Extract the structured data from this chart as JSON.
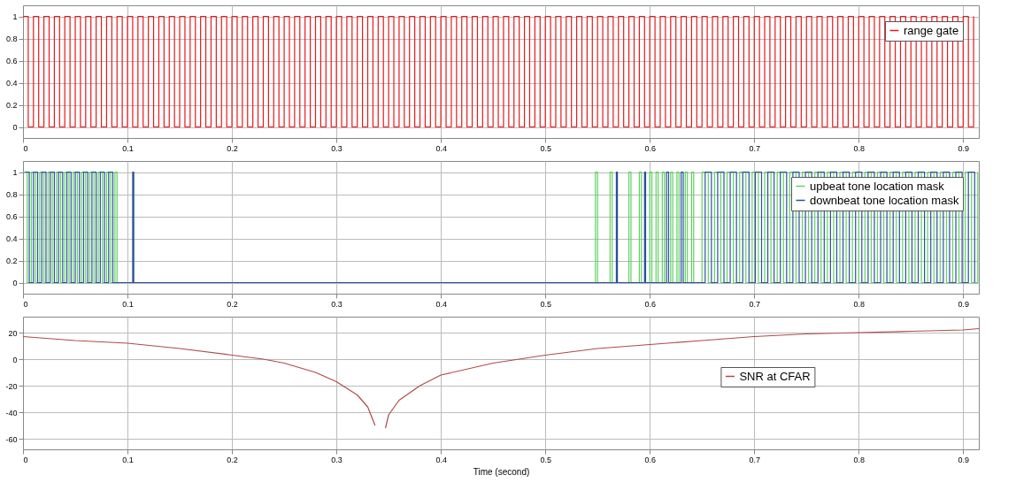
{
  "chart_data": [
    {
      "type": "step",
      "xlim": [
        0,
        0.915
      ],
      "xticks": [
        0,
        0.1,
        0.2,
        0.3,
        0.4,
        0.5,
        0.6,
        0.7,
        0.8,
        0.9
      ],
      "ylim": [
        -0.1,
        1.1
      ],
      "yticks": [
        0,
        0.2,
        0.4,
        0.6,
        0.8,
        1
      ],
      "grid": true,
      "legend": "top right",
      "series": [
        {
          "name": "range gate",
          "color": "#e8191b",
          "x": [
            0,
            0.005,
            0.01,
            0.015,
            0.02,
            0.025,
            0.03,
            0.035,
            0.04,
            0.045,
            0.05,
            0.055,
            0.06,
            0.065,
            0.07,
            0.075,
            0.08,
            0.085,
            0.09,
            0.095,
            0.1,
            0.105,
            0.11,
            0.115,
            0.12,
            0.125,
            0.13,
            0.135,
            0.14,
            0.145,
            0.15,
            0.155,
            0.16,
            0.165,
            0.17,
            0.175,
            0.18,
            0.185,
            0.19,
            0.195,
            0.2,
            0.205,
            0.21,
            0.215,
            0.22,
            0.225,
            0.23,
            0.235,
            0.24,
            0.245,
            0.25,
            0.255,
            0.26,
            0.265,
            0.27,
            0.275,
            0.28,
            0.285,
            0.29,
            0.295,
            0.3,
            0.305,
            0.31,
            0.315,
            0.32,
            0.325,
            0.33,
            0.335,
            0.34,
            0.345,
            0.35,
            0.355,
            0.36,
            0.365,
            0.37,
            0.375,
            0.38,
            0.385,
            0.39,
            0.395,
            0.4,
            0.405,
            0.41,
            0.415,
            0.42,
            0.425,
            0.43,
            0.435,
            0.44,
            0.445,
            0.45,
            0.455,
            0.46,
            0.465,
            0.47,
            0.475,
            0.48,
            0.485,
            0.49,
            0.495,
            0.5,
            0.505,
            0.51,
            0.515,
            0.52,
            0.525,
            0.53,
            0.535,
            0.54,
            0.545,
            0.55,
            0.555,
            0.56,
            0.565,
            0.57,
            0.575,
            0.58,
            0.585,
            0.59,
            0.595,
            0.6,
            0.605,
            0.61,
            0.615,
            0.62,
            0.625,
            0.63,
            0.635,
            0.64,
            0.645,
            0.65,
            0.655,
            0.66,
            0.665,
            0.67,
            0.675,
            0.68,
            0.685,
            0.69,
            0.695,
            0.7,
            0.705,
            0.71,
            0.715,
            0.72,
            0.725,
            0.73,
            0.735,
            0.74,
            0.745,
            0.75,
            0.755,
            0.76,
            0.765,
            0.77,
            0.775,
            0.78,
            0.785,
            0.79,
            0.795,
            0.8,
            0.805,
            0.81,
            0.815,
            0.82,
            0.825,
            0.83,
            0.835,
            0.84,
            0.845,
            0.85,
            0.855,
            0.86,
            0.865,
            0.87,
            0.875,
            0.88,
            0.885,
            0.89,
            0.895,
            0.9,
            0.905,
            0.91
          ],
          "values": [
            1,
            0,
            1,
            0,
            1,
            0,
            1,
            0,
            1,
            0,
            1,
            0,
            1,
            0,
            1,
            0,
            1,
            0,
            1,
            0,
            1,
            0,
            1,
            0,
            1,
            0,
            1,
            0,
            1,
            0,
            1,
            0,
            1,
            0,
            1,
            0,
            1,
            0,
            1,
            0,
            1,
            0,
            1,
            0,
            1,
            0,
            1,
            0,
            1,
            0,
            1,
            0,
            1,
            0,
            1,
            0,
            1,
            0,
            1,
            0,
            1,
            0,
            1,
            0,
            1,
            0,
            1,
            0,
            1,
            0,
            1,
            0,
            1,
            0,
            1,
            0,
            1,
            0,
            1,
            0,
            1,
            0,
            1,
            0,
            1,
            0,
            1,
            0,
            1,
            0,
            1,
            0,
            1,
            0,
            1,
            0,
            1,
            0,
            1,
            0,
            1,
            0,
            1,
            0,
            1,
            0,
            1,
            0,
            1,
            0,
            1,
            0,
            1,
            0,
            1,
            0,
            1,
            0,
            1,
            0,
            1,
            0,
            1,
            0,
            1,
            0,
            1,
            0,
            1,
            0,
            1,
            0,
            1,
            0,
            1,
            0,
            1,
            0,
            1,
            0,
            1,
            0,
            1,
            0,
            1,
            0,
            1,
            0,
            1,
            0,
            1,
            0,
            1,
            0,
            1,
            0,
            1,
            0,
            1,
            0,
            1,
            0,
            1,
            0,
            1,
            0,
            1,
            0,
            1,
            0,
            1,
            0,
            1,
            0,
            1,
            0,
            1,
            0,
            1,
            0,
            1,
            0,
            1
          ]
        }
      ]
    },
    {
      "type": "step",
      "xlim": [
        0,
        0.915
      ],
      "xticks": [
        0,
        0.1,
        0.2,
        0.3,
        0.4,
        0.5,
        0.6,
        0.7,
        0.8,
        0.9
      ],
      "ylim": [
        -0.1,
        1.1
      ],
      "yticks": [
        0,
        0.2,
        0.4,
        0.6,
        0.8,
        1
      ],
      "grid": true,
      "legend": "top right",
      "series": [
        {
          "name": "upbeat tone location mask",
          "color": "#5fd35f",
          "x": [
            0,
            0.004,
            0.008,
            0.012,
            0.016,
            0.02,
            0.024,
            0.028,
            0.032,
            0.036,
            0.04,
            0.044,
            0.048,
            0.052,
            0.056,
            0.06,
            0.064,
            0.068,
            0.072,
            0.076,
            0.08,
            0.084,
            0.088,
            0.09,
            0.548,
            0.55,
            0.562,
            0.564,
            0.58,
            0.582,
            0.59,
            0.592,
            0.6,
            0.602,
            0.606,
            0.608,
            0.612,
            0.614,
            0.62,
            0.622,
            0.626,
            0.628,
            0.634,
            0.636,
            0.64,
            0.642,
            0.65,
            0.656,
            0.662,
            0.668,
            0.674,
            0.68,
            0.686,
            0.692,
            0.698,
            0.704,
            0.71,
            0.716,
            0.722,
            0.728,
            0.734,
            0.74,
            0.746,
            0.752,
            0.758,
            0.764,
            0.77,
            0.776,
            0.782,
            0.788,
            0.794,
            0.8,
            0.806,
            0.812,
            0.818,
            0.824,
            0.83,
            0.836,
            0.842,
            0.848,
            0.854,
            0.86,
            0.866,
            0.872,
            0.878,
            0.884,
            0.89,
            0.896,
            0.902,
            0.908,
            0.914
          ],
          "values": [
            1,
            0,
            1,
            0,
            1,
            0,
            1,
            0,
            1,
            0,
            1,
            0,
            1,
            0,
            1,
            0,
            1,
            0,
            1,
            0,
            1,
            0,
            1,
            0,
            1,
            0,
            1,
            0,
            1,
            0,
            1,
            0,
            1,
            0,
            1,
            0,
            1,
            0,
            1,
            0,
            1,
            0,
            1,
            0,
            1,
            0,
            1,
            0,
            1,
            0,
            1,
            0,
            1,
            0,
            1,
            0,
            1,
            0,
            1,
            0,
            1,
            0,
            1,
            0,
            1,
            0,
            1,
            0,
            1,
            0,
            1,
            0,
            1,
            0,
            1,
            0,
            1,
            0,
            1,
            0,
            1,
            0,
            1,
            0,
            1,
            0,
            1,
            0,
            1,
            0,
            1
          ]
        },
        {
          "name": "downbeat tone location mask",
          "color": "#2b4f9e",
          "x": [
            0.002,
            0.006,
            0.01,
            0.014,
            0.018,
            0.022,
            0.026,
            0.03,
            0.034,
            0.038,
            0.042,
            0.046,
            0.05,
            0.054,
            0.058,
            0.062,
            0.066,
            0.07,
            0.074,
            0.078,
            0.082,
            0.086,
            0.105,
            0.106,
            0.568,
            0.569,
            0.595,
            0.596,
            0.616,
            0.618,
            0.63,
            0.632,
            0.653,
            0.659,
            0.665,
            0.671,
            0.677,
            0.683,
            0.689,
            0.695,
            0.701,
            0.707,
            0.713,
            0.719,
            0.725,
            0.731,
            0.737,
            0.743,
            0.749,
            0.755,
            0.761,
            0.767,
            0.773,
            0.779,
            0.785,
            0.791,
            0.797,
            0.803,
            0.809,
            0.815,
            0.821,
            0.827,
            0.833,
            0.839,
            0.845,
            0.851,
            0.857,
            0.863,
            0.869,
            0.875,
            0.881,
            0.887,
            0.893,
            0.899,
            0.905,
            0.911
          ],
          "values": [
            1,
            0,
            1,
            0,
            1,
            0,
            1,
            0,
            1,
            0,
            1,
            0,
            1,
            0,
            1,
            0,
            1,
            0,
            1,
            0,
            1,
            0,
            1,
            0,
            1,
            0,
            1,
            0,
            1,
            0,
            1,
            0,
            1,
            0,
            1,
            0,
            1,
            0,
            1,
            0,
            1,
            0,
            1,
            0,
            1,
            0,
            1,
            0,
            1,
            0,
            1,
            0,
            1,
            0,
            1,
            0,
            1,
            0,
            1,
            0,
            1,
            0,
            1,
            0,
            1,
            0,
            1,
            0,
            1,
            0,
            1,
            0,
            1,
            0,
            1,
            0
          ]
        }
      ]
    },
    {
      "type": "line",
      "xlabel": "Time (second)",
      "xlim": [
        0,
        0.915
      ],
      "xticks": [
        0,
        0.1,
        0.2,
        0.3,
        0.4,
        0.5,
        0.6,
        0.7,
        0.8,
        0.9
      ],
      "ylim": [
        -68,
        32
      ],
      "yticks": [
        -60,
        -40,
        -20,
        0,
        20
      ],
      "grid": true,
      "legend": "right",
      "series": [
        {
          "name": "SNR at CFAR",
          "color": "#b04a4a",
          "x": [
            0,
            0.05,
            0.1,
            0.15,
            0.2,
            0.23,
            0.25,
            0.28,
            0.3,
            0.32,
            0.33,
            0.337,
            0.34,
            0.344,
            0.347,
            0.35,
            0.36,
            0.38,
            0.4,
            0.45,
            0.5,
            0.55,
            0.6,
            0.65,
            0.7,
            0.75,
            0.8,
            0.85,
            0.9,
            0.915
          ],
          "values": [
            17,
            14,
            12,
            8,
            3,
            0,
            -3,
            -10,
            -17,
            -27,
            -36,
            -50,
            null,
            null,
            -52,
            -42,
            -31,
            -20,
            -12,
            -3,
            3,
            8,
            11,
            14,
            17,
            19,
            20,
            21,
            22,
            23
          ]
        }
      ]
    }
  ]
}
